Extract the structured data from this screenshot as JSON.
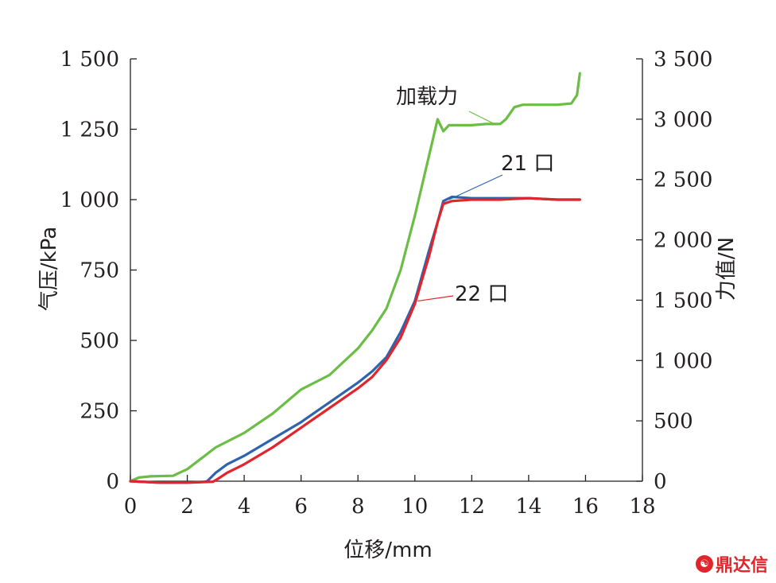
{
  "chart_data": {
    "type": "line",
    "title": "",
    "xlabel": "位移/mm",
    "ylabel_left": "气压/kPa",
    "ylabel_right": "力值/N",
    "xlim": [
      0,
      18
    ],
    "ylim_left": [
      0,
      1500
    ],
    "ylim_right": [
      0,
      3500
    ],
    "x_ticks": [
      "0",
      "2",
      "4",
      "6",
      "8",
      "10",
      "12",
      "14",
      "16",
      "18"
    ],
    "y_left_ticks": [
      "0",
      "250",
      "500",
      "750",
      "1 000",
      "1 250",
      "1 500"
    ],
    "y_right_ticks": [
      "0",
      "500",
      "1 000",
      "1 500",
      "2 000",
      "2 500",
      "3 000",
      "3 500"
    ],
    "grid": false,
    "series": [
      {
        "name": "加载力",
        "axis": "right",
        "color": "#6cbd45",
        "points": [
          [
            0,
            0
          ],
          [
            0.3,
            30
          ],
          [
            0.7,
            40
          ],
          [
            1.5,
            45
          ],
          [
            2,
            100
          ],
          [
            2.5,
            190
          ],
          [
            3,
            280
          ],
          [
            4,
            400
          ],
          [
            5,
            560
          ],
          [
            5.5,
            660
          ],
          [
            6,
            760
          ],
          [
            7,
            880
          ],
          [
            8,
            1100
          ],
          [
            8.5,
            1250
          ],
          [
            9,
            1430
          ],
          [
            9.5,
            1750
          ],
          [
            10,
            2200
          ],
          [
            10.5,
            2700
          ],
          [
            10.8,
            3000
          ],
          [
            11,
            2900
          ],
          [
            11.2,
            2950
          ],
          [
            11.5,
            2950
          ],
          [
            12,
            2950
          ],
          [
            12.5,
            2960
          ],
          [
            13,
            2960
          ],
          [
            13.2,
            3000
          ],
          [
            13.5,
            3100
          ],
          [
            13.8,
            3120
          ],
          [
            14,
            3120
          ],
          [
            14.5,
            3120
          ],
          [
            15,
            3120
          ],
          [
            15.5,
            3130
          ],
          [
            15.7,
            3200
          ],
          [
            15.8,
            3380
          ]
        ]
      },
      {
        "name": "21 口",
        "axis": "left",
        "color": "#2e63ad",
        "points": [
          [
            0,
            0
          ],
          [
            1,
            -5
          ],
          [
            2,
            -5
          ],
          [
            2.6,
            -2
          ],
          [
            2.7,
            0
          ],
          [
            3,
            30
          ],
          [
            3.4,
            60
          ],
          [
            4,
            90
          ],
          [
            5,
            150
          ],
          [
            6,
            210
          ],
          [
            7,
            280
          ],
          [
            8,
            350
          ],
          [
            8.5,
            390
          ],
          [
            9,
            440
          ],
          [
            9.5,
            530
          ],
          [
            10,
            640
          ],
          [
            10.5,
            820
          ],
          [
            10.8,
            920
          ],
          [
            11,
            995
          ],
          [
            11.3,
            1010
          ],
          [
            12,
            1005
          ],
          [
            13,
            1005
          ],
          [
            14,
            1005
          ],
          [
            15,
            1000
          ],
          [
            15.8,
            1000
          ]
        ]
      },
      {
        "name": "22 口",
        "axis": "left",
        "color": "#e0262c",
        "points": [
          [
            0,
            0
          ],
          [
            1,
            -5
          ],
          [
            2,
            -5
          ],
          [
            2.9,
            -2
          ],
          [
            3.1,
            10
          ],
          [
            3.4,
            30
          ],
          [
            4,
            60
          ],
          [
            5,
            120
          ],
          [
            6,
            190
          ],
          [
            7,
            260
          ],
          [
            8,
            330
          ],
          [
            8.5,
            370
          ],
          [
            9,
            430
          ],
          [
            9.5,
            510
          ],
          [
            10,
            630
          ],
          [
            10.5,
            800
          ],
          [
            10.8,
            920
          ],
          [
            11,
            985
          ],
          [
            11.3,
            995
          ],
          [
            12,
            1000
          ],
          [
            13,
            1000
          ],
          [
            14,
            1005
          ],
          [
            15,
            1000
          ],
          [
            15.8,
            1000
          ]
        ]
      }
    ],
    "annotations": [
      {
        "text": "加载力",
        "series": "加载力"
      },
      {
        "text": "21 口",
        "series": "21 口"
      },
      {
        "text": "22 口",
        "series": "22 口"
      }
    ]
  },
  "watermark": {
    "text": "鼎达信"
  }
}
